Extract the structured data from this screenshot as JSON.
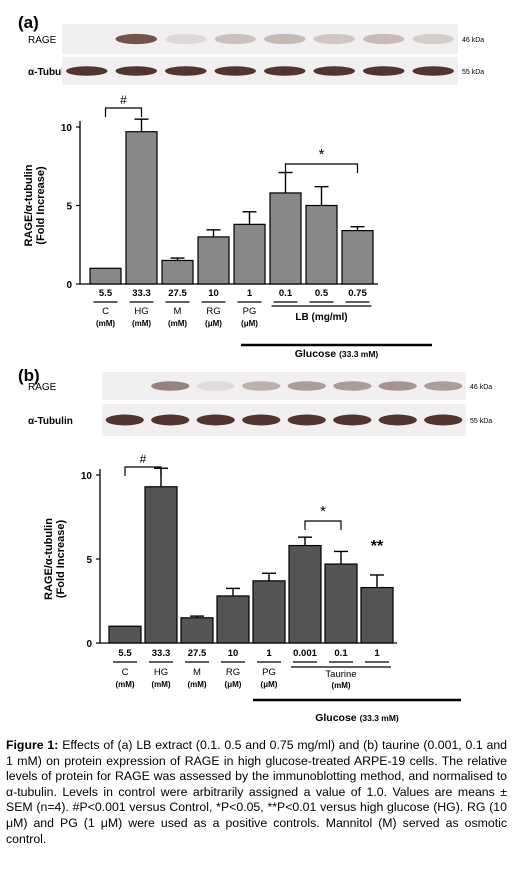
{
  "figure": {
    "caption_label": "Figure 1:",
    "caption_text": "Effects of (a) LB extract (0.1. 0.5 and 0.75 mg/ml) and (b) taurine (0.001, 0.1 and 1 mM) on protein expression of RAGE in high glucose-treated ARPE-19 cells. The relative levels of protein for RAGE was assessed by the immunoblotting method, and normalised to α-tubulin. Levels in control were arbitrarily assigned a value of 1.0. Values are means ± SEM (n=4). #P<0.001 versus Control, *P<0.05, **P<0.01 versus high glucose (HG). RG (10 μM) and PG (1 μM) were used as a positive controls. Mannitol (M) served as osmotic control."
  },
  "chart_data": [
    {
      "panel": "(a)",
      "type": "bar",
      "ylabel": "RAGE/α-tubulin",
      "ylabel2": "(Fold Increase)",
      "ylim": [
        0,
        10
      ],
      "yticks": [
        0,
        5,
        10
      ],
      "categories": [
        "5.5",
        "33.3",
        "27.5",
        "10",
        "1",
        "0.1",
        "0.5",
        "0.75"
      ],
      "values": [
        1.0,
        9.7,
        1.5,
        3.0,
        3.8,
        5.8,
        5.0,
        3.4
      ],
      "errors": [
        0.0,
        0.8,
        0.15,
        0.45,
        0.8,
        1.3,
        1.2,
        0.25
      ],
      "bar_color": "#888888",
      "group_labels": [
        {
          "name": "C",
          "unit": "(mM)"
        },
        {
          "name": "HG",
          "unit": "(mM)"
        },
        {
          "name": "M",
          "unit": "(mM)"
        },
        {
          "name": "RG",
          "unit": "(μM)"
        },
        {
          "name": "PG",
          "unit": "(μM)"
        },
        {
          "name": "LB (mg/ml)",
          "unit": ""
        }
      ],
      "glucose_label": "Glucose",
      "glucose_unit": "(33.3 mM)",
      "annotations": {
        "hash": "#",
        "star": "*",
        "double_star": ""
      },
      "blots": {
        "rage_label": "RAGE",
        "rage_kda": "46 kDa",
        "tubulin_label": "α-Tubulin",
        "tubulin_kda": "55 kDa"
      }
    },
    {
      "panel": "(b)",
      "type": "bar",
      "ylabel": "RAGE/α-tubulin",
      "ylabel2": "(Fold Increase)",
      "ylim": [
        0,
        10
      ],
      "yticks": [
        0,
        5,
        10
      ],
      "categories": [
        "5.5",
        "33.3",
        "27.5",
        "10",
        "1",
        "0.001",
        "0.1",
        "1"
      ],
      "values": [
        1.0,
        9.3,
        1.5,
        2.8,
        3.7,
        5.8,
        4.7,
        3.3
      ],
      "errors": [
        0.0,
        1.1,
        0.1,
        0.45,
        0.45,
        0.5,
        0.75,
        0.75
      ],
      "bar_color": "#555555",
      "group_labels": [
        {
          "name": "C",
          "unit": "(mM)"
        },
        {
          "name": "HG",
          "unit": "(mM)"
        },
        {
          "name": "M",
          "unit": "(mM)"
        },
        {
          "name": "RG",
          "unit": "(μM)"
        },
        {
          "name": "PG",
          "unit": "(μM)"
        },
        {
          "name": "Taurine",
          "unit": "(mM)"
        }
      ],
      "glucose_label": "Glucose",
      "glucose_unit": "(33.3 mM)",
      "annotations": {
        "hash": "#",
        "star": "*",
        "double_star": "**"
      },
      "blots": {
        "rage_label": "RAGE",
        "rage_kda": "46 kDa",
        "tubulin_label": "α-Tubulin",
        "tubulin_kda": "55 kDa"
      }
    }
  ]
}
